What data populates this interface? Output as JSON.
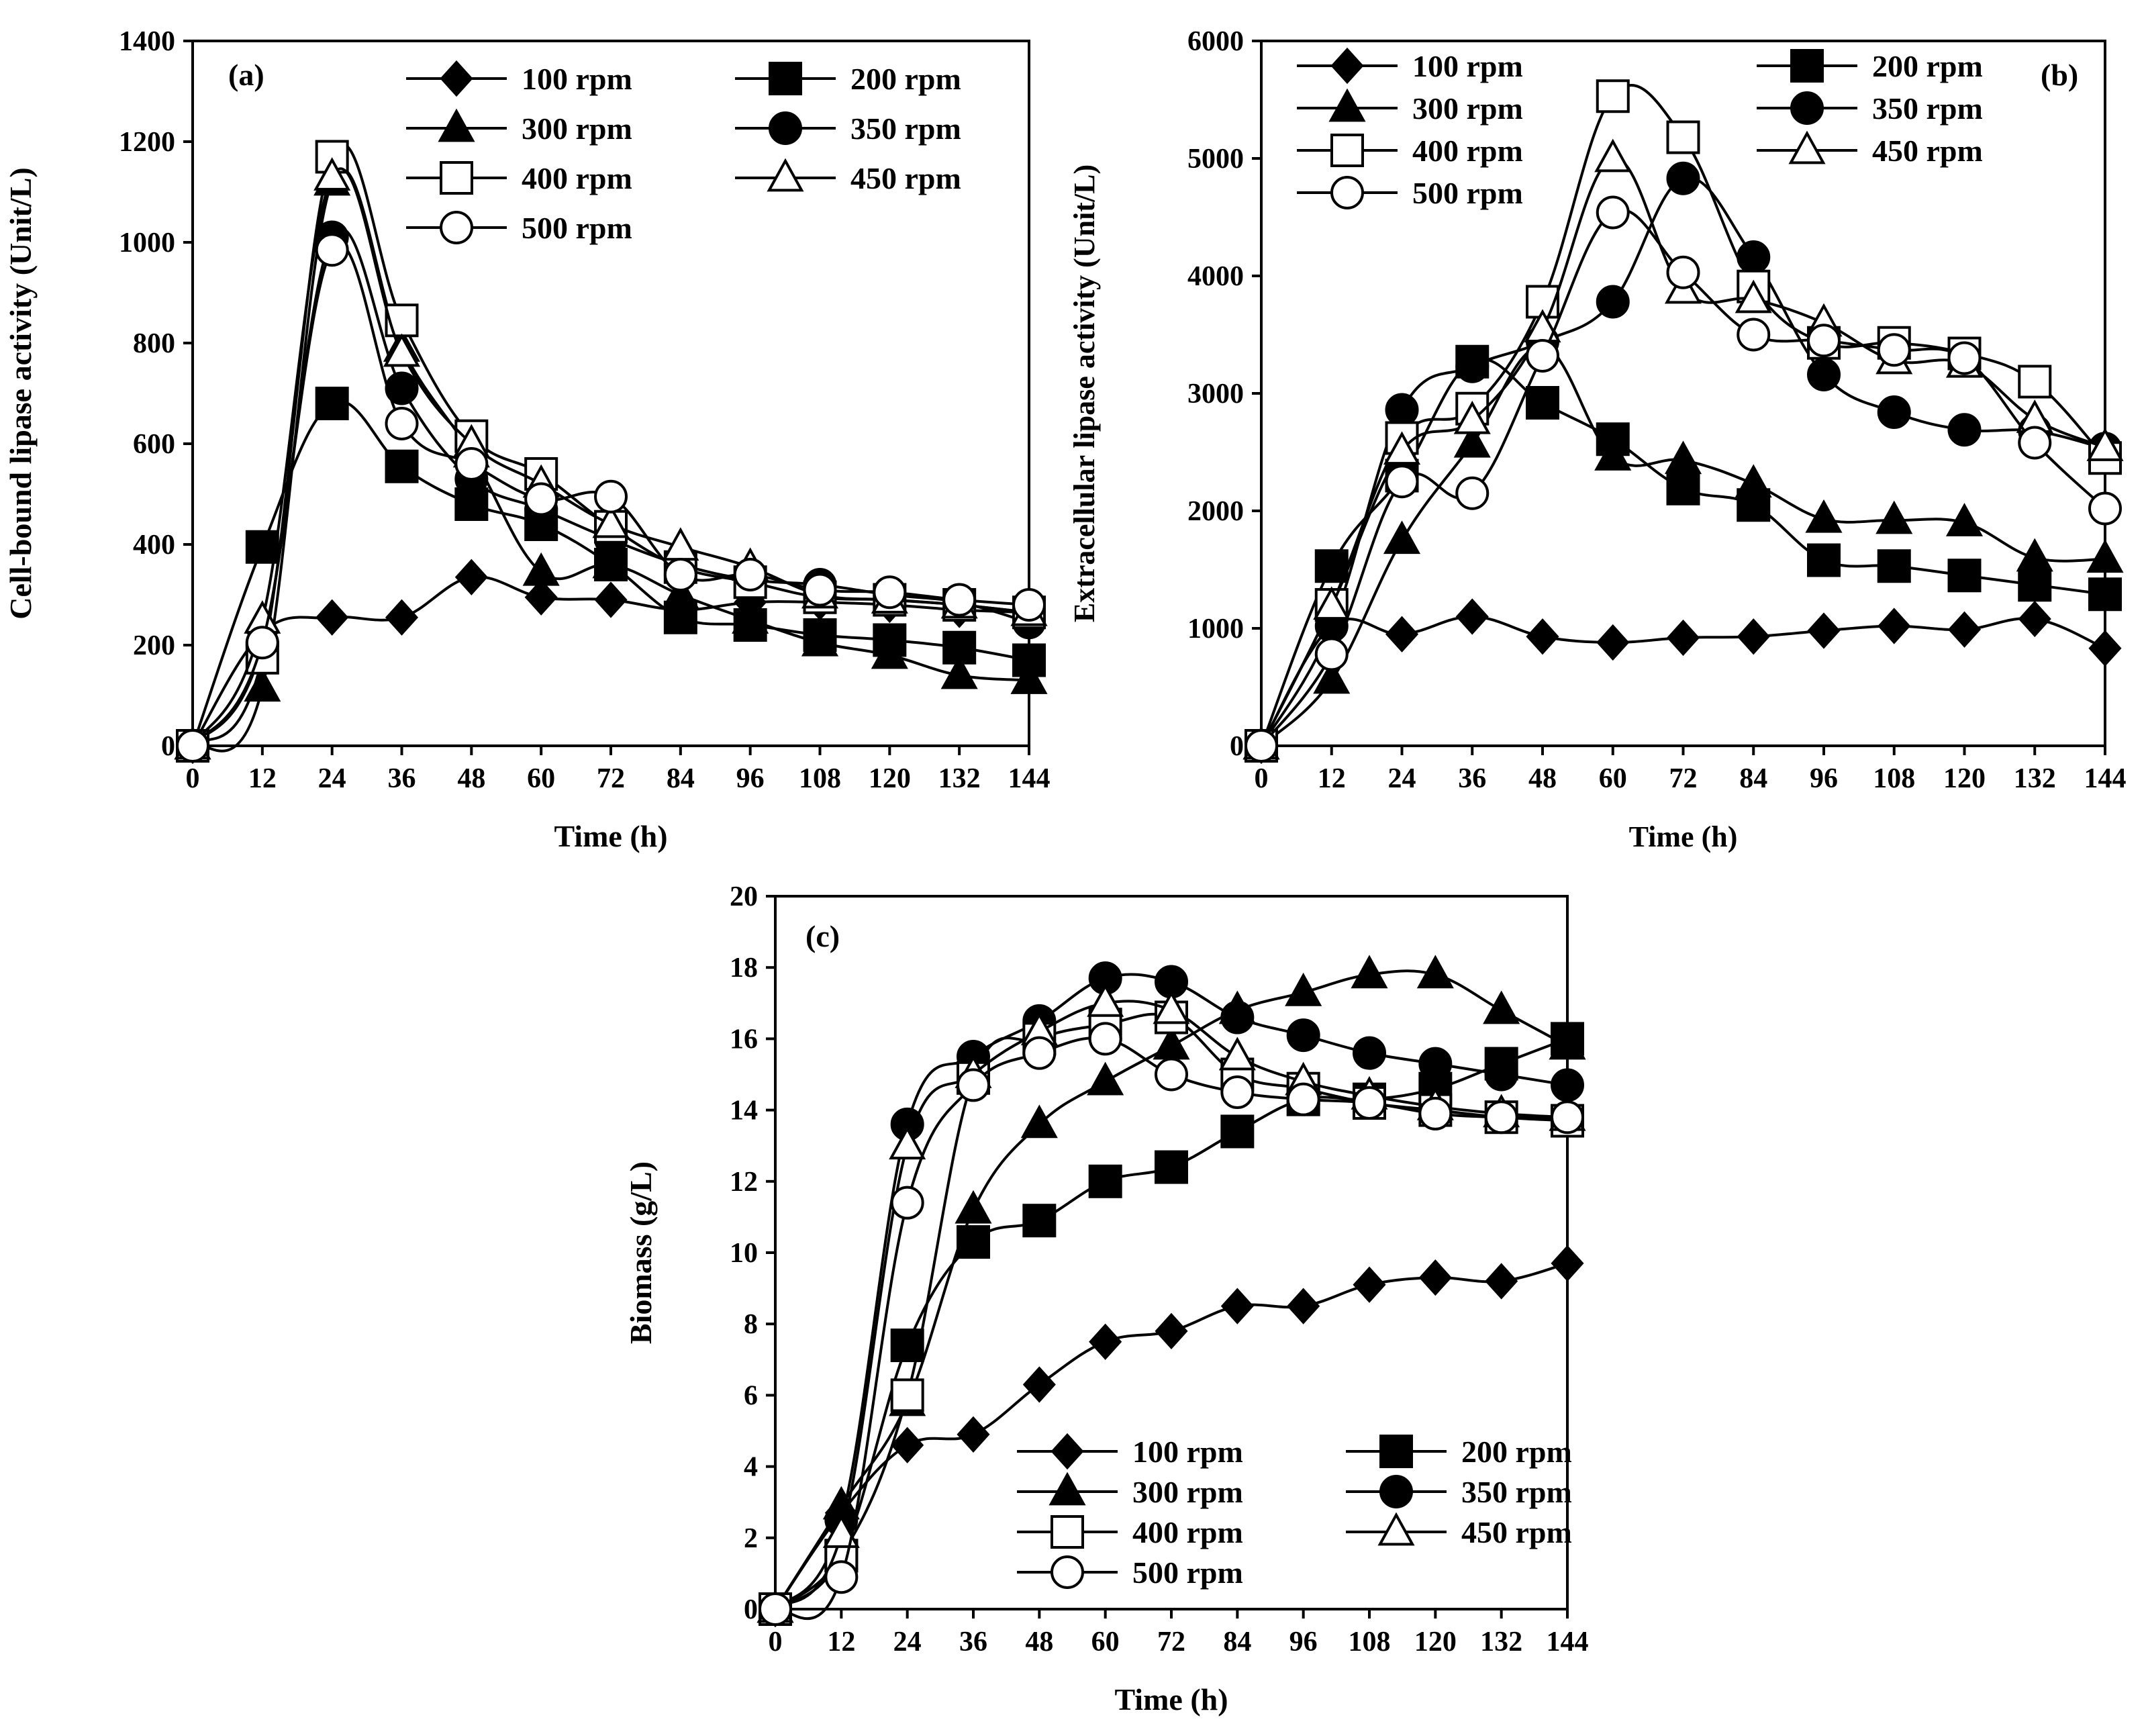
{
  "chart_data": [
    {
      "id": "a",
      "type": "line",
      "panel_label": "(a)",
      "title": "",
      "xlabel": "Time (h)",
      "ylabel": "Cell-bound lipase activity (Unit/L)",
      "xlim": [
        0,
        144
      ],
      "ylim": [
        0,
        1400
      ],
      "xticks": [
        0,
        12,
        24,
        36,
        48,
        60,
        72,
        84,
        96,
        108,
        120,
        132,
        144
      ],
      "yticks": [
        0,
        200,
        400,
        600,
        800,
        1000,
        1200,
        1400
      ],
      "legend_position": "top-right",
      "x": [
        0,
        12,
        24,
        36,
        48,
        60,
        72,
        84,
        96,
        108,
        120,
        132,
        144
      ],
      "series": [
        {
          "name": "100 rpm",
          "marker": "diamond",
          "values": [
            0,
            225,
            255,
            255,
            335,
            295,
            290,
            270,
            285,
            285,
            280,
            270,
            265
          ]
        },
        {
          "name": "200 rpm",
          "marker": "square-filled",
          "values": [
            0,
            395,
            680,
            555,
            480,
            440,
            360,
            255,
            240,
            220,
            210,
            195,
            170
          ]
        },
        {
          "name": "300 rpm",
          "marker": "triangle-filled",
          "values": [
            0,
            115,
            1120,
            790,
            580,
            345,
            360,
            300,
            250,
            205,
            180,
            140,
            130
          ]
        },
        {
          "name": "350 rpm",
          "marker": "circle-filled",
          "values": [
            0,
            200,
            1010,
            710,
            530,
            470,
            410,
            360,
            330,
            320,
            300,
            285,
            245
          ]
        },
        {
          "name": "400 rpm",
          "marker": "square-open",
          "values": [
            0,
            175,
            1170,
            845,
            615,
            540,
            435,
            355,
            325,
            295,
            290,
            280,
            265
          ]
        },
        {
          "name": "450 rpm",
          "marker": "triangle-open",
          "values": [
            0,
            250,
            1130,
            780,
            600,
            520,
            440,
            395,
            355,
            300,
            290,
            280,
            265
          ]
        },
        {
          "name": "500 rpm",
          "marker": "circle-open",
          "values": [
            0,
            205,
            985,
            640,
            560,
            490,
            495,
            340,
            340,
            310,
            305,
            290,
            280
          ]
        }
      ]
    },
    {
      "id": "b",
      "type": "line",
      "panel_label": "(b)",
      "title": "",
      "xlabel": "Time (h)",
      "ylabel": "Extracellular lipase activity (Unit/L)",
      "xlim": [
        0,
        144
      ],
      "ylim": [
        0,
        6000
      ],
      "xticks": [
        0,
        12,
        24,
        36,
        48,
        60,
        72,
        84,
        96,
        108,
        120,
        132,
        144
      ],
      "yticks": [
        0,
        1000,
        2000,
        3000,
        4000,
        5000,
        6000
      ],
      "legend_position": "top",
      "x": [
        0,
        12,
        24,
        36,
        48,
        60,
        72,
        84,
        96,
        108,
        120,
        132,
        144
      ],
      "series": [
        {
          "name": "100 rpm",
          "marker": "diamond",
          "values": [
            0,
            1020,
            950,
            1100,
            930,
            880,
            920,
            930,
            980,
            1020,
            990,
            1080,
            830
          ]
        },
        {
          "name": "200 rpm",
          "marker": "square-filled",
          "values": [
            0,
            1530,
            2300,
            3270,
            2920,
            2610,
            2190,
            2050,
            1580,
            1530,
            1450,
            1370,
            1290
          ]
        },
        {
          "name": "300 rpm",
          "marker": "triangle-filled",
          "values": [
            0,
            560,
            1750,
            2570,
            3400,
            2460,
            2430,
            2230,
            1930,
            1920,
            1900,
            1600,
            1590
          ]
        },
        {
          "name": "350 rpm",
          "marker": "circle-filled",
          "values": [
            0,
            1020,
            2860,
            3230,
            3440,
            3780,
            4830,
            4160,
            3160,
            2840,
            2690,
            2680,
            2530
          ]
        },
        {
          "name": "400 rpm",
          "marker": "square-open",
          "values": [
            0,
            1200,
            2620,
            2870,
            3780,
            5530,
            5180,
            3910,
            3430,
            3430,
            3340,
            3100,
            2450
          ]
        },
        {
          "name": "450 rpm",
          "marker": "triangle-open",
          "values": [
            0,
            1190,
            2510,
            2770,
            3550,
            5000,
            3880,
            3800,
            3600,
            3280,
            3250,
            2780,
            2540
          ]
        },
        {
          "name": "500 rpm",
          "marker": "circle-open",
          "values": [
            0,
            780,
            2250,
            2150,
            3320,
            4540,
            4030,
            3500,
            3450,
            3370,
            3300,
            2580,
            2020
          ]
        }
      ]
    },
    {
      "id": "c",
      "type": "line",
      "panel_label": "(c)",
      "title": "",
      "xlabel": "Time (h)",
      "ylabel": "Biomass (g/L)",
      "xlim": [
        0,
        144
      ],
      "ylim": [
        0,
        20
      ],
      "xticks": [
        0,
        12,
        24,
        36,
        48,
        60,
        72,
        84,
        96,
        108,
        120,
        132,
        144
      ],
      "yticks": [
        0,
        2,
        4,
        6,
        8,
        10,
        12,
        14,
        16,
        18,
        20
      ],
      "legend_position": "bottom-center",
      "x": [
        0,
        12,
        24,
        36,
        48,
        60,
        72,
        84,
        96,
        108,
        120,
        132,
        144
      ],
      "series": [
        {
          "name": "100 rpm",
          "marker": "diamond",
          "values": [
            0,
            2.7,
            4.6,
            4.9,
            6.3,
            7.5,
            7.8,
            8.5,
            8.5,
            9.1,
            9.3,
            9.2,
            9.7
          ]
        },
        {
          "name": "200 rpm",
          "marker": "square-filled",
          "values": [
            0,
            1.5,
            7.4,
            10.3,
            10.9,
            12.0,
            12.4,
            13.4,
            14.3,
            14.3,
            14.6,
            15.3,
            16.0
          ]
        },
        {
          "name": "300 rpm",
          "marker": "triangle-filled",
          "values": [
            0,
            2.9,
            5.8,
            11.2,
            13.6,
            14.8,
            15.8,
            16.8,
            17.3,
            17.8,
            17.8,
            16.8,
            15.8
          ]
        },
        {
          "name": "350 rpm",
          "marker": "circle-filled",
          "values": [
            0,
            2.5,
            13.6,
            15.5,
            16.5,
            17.7,
            17.6,
            16.6,
            16.1,
            15.6,
            15.3,
            15.0,
            14.7
          ]
        },
        {
          "name": "400 rpm",
          "marker": "square-open",
          "values": [
            0,
            1.5,
            6.0,
            14.9,
            16.0,
            16.4,
            16.6,
            15.0,
            14.6,
            14.2,
            14.0,
            13.8,
            13.7
          ]
        },
        {
          "name": "450 rpm",
          "marker": "triangle-open",
          "values": [
            0,
            2.1,
            13.0,
            15.0,
            16.2,
            17.0,
            16.8,
            15.5,
            14.8,
            14.4,
            14.1,
            13.9,
            13.8
          ]
        },
        {
          "name": "500 rpm",
          "marker": "circle-open",
          "values": [
            0,
            0.9,
            11.4,
            14.7,
            15.6,
            16.0,
            15.0,
            14.5,
            14.3,
            14.2,
            13.9,
            13.8,
            13.8
          ]
        }
      ]
    }
  ]
}
